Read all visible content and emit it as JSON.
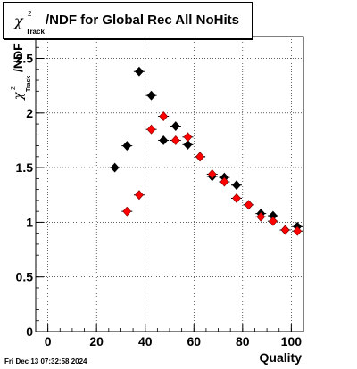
{
  "title": {
    "chi_symbol": "χ",
    "superscript": "2",
    "subscript": "Track",
    "rest": "/NDF for Global Rec All NoHits"
  },
  "footer": {
    "timestamp": "Fri Dec 13 07:32:58 2024"
  },
  "chart_data": {
    "type": "scatter",
    "xlabel": "Quality",
    "ylabel": {
      "chi_symbol": "χ",
      "superscript": "2",
      "subscript": "Track",
      "rest": "/NDF"
    },
    "xlim": [
      -5,
      105
    ],
    "ylim": [
      0,
      2.7
    ],
    "xticks": [
      "0",
      "20",
      "40",
      "60",
      "80",
      "100"
    ],
    "yticks": [
      "0",
      "0.5",
      "1",
      "1.5",
      "2",
      "2.5"
    ],
    "grid": true,
    "series": [
      {
        "color": "#000000",
        "points": [
          {
            "x": 27.5,
            "y": 1.5
          },
          {
            "x": 32.5,
            "y": 1.7
          },
          {
            "x": 37.5,
            "y": 2.38
          },
          {
            "x": 42.5,
            "y": 2.16
          },
          {
            "x": 47.5,
            "y": 1.75
          },
          {
            "x": 52.5,
            "y": 1.88
          },
          {
            "x": 57.5,
            "y": 1.71
          },
          {
            "x": 62.5,
            "y": 1.6
          },
          {
            "x": 67.5,
            "y": 1.42
          },
          {
            "x": 72.5,
            "y": 1.41
          },
          {
            "x": 77.5,
            "y": 1.34
          },
          {
            "x": 82.5,
            "y": 1.16
          },
          {
            "x": 87.5,
            "y": 1.08
          },
          {
            "x": 92.5,
            "y": 1.06
          },
          {
            "x": 97.5,
            "y": 0.93
          },
          {
            "x": 102.5,
            "y": 0.96
          }
        ]
      },
      {
        "color": "#ff0000",
        "points": [
          {
            "x": 32.5,
            "y": 1.1
          },
          {
            "x": 37.5,
            "y": 1.25
          },
          {
            "x": 42.5,
            "y": 1.85
          },
          {
            "x": 47.5,
            "y": 1.97
          },
          {
            "x": 52.5,
            "y": 1.75
          },
          {
            "x": 57.5,
            "y": 1.78
          },
          {
            "x": 62.5,
            "y": 1.6
          },
          {
            "x": 67.5,
            "y": 1.44
          },
          {
            "x": 72.5,
            "y": 1.37
          },
          {
            "x": 77.5,
            "y": 1.22
          },
          {
            "x": 82.5,
            "y": 1.16
          },
          {
            "x": 87.5,
            "y": 1.05
          },
          {
            "x": 92.5,
            "y": 1.01
          },
          {
            "x": 97.5,
            "y": 0.93
          },
          {
            "x": 102.5,
            "y": 0.92
          }
        ]
      }
    ]
  }
}
